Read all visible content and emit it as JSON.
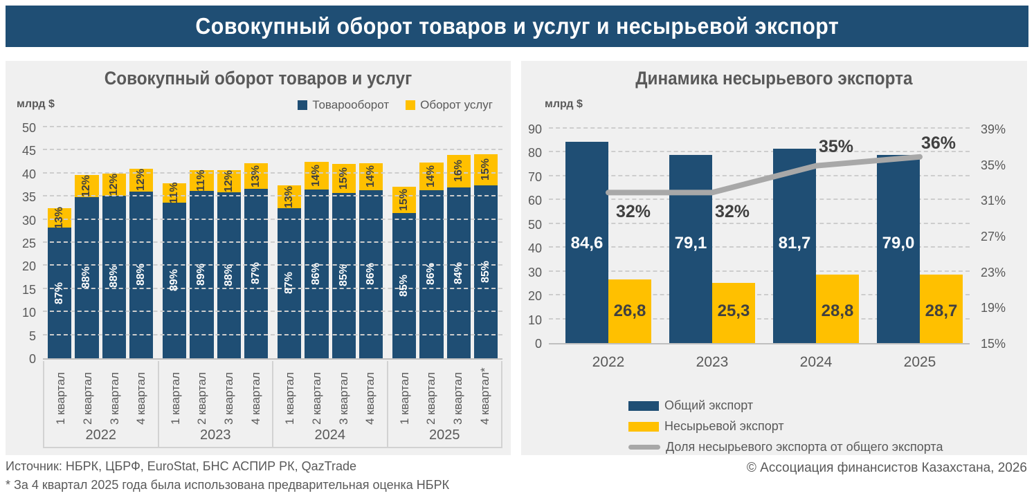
{
  "header": {
    "title": "Совокупный оборот товаров и услуг и несырьевой экспорт"
  },
  "colors": {
    "blue": "#1F4E74",
    "yellow": "#FFC000",
    "grey_line": "#A8A8A8",
    "panel_bg": "#F0F0F0",
    "text_grey": "#595959"
  },
  "left_chart": {
    "title": "Совокупный оборот товаров и услуг",
    "unit_label": "млрд $",
    "legend": [
      {
        "label": "Товарооборот",
        "color": "#1F4E74"
      },
      {
        "label": "Оборот услуг",
        "color": "#FFC000"
      }
    ]
  },
  "right_chart": {
    "title": "Динамика несырьевого экспорта",
    "unit_label": "млрд $",
    "legend": [
      {
        "label": "Общий экспорт",
        "type": "box",
        "color": "#1F4E74"
      },
      {
        "label": "Несырьевой экспорт",
        "type": "box",
        "color": "#FFC000"
      },
      {
        "label": "Доля несырьевого экспорта от общего экспорта",
        "type": "line",
        "color": "#A8A8A8"
      }
    ]
  },
  "footer": {
    "source": "Источник: НБРК, ЦБРФ, EuroStat, БНС АСПИР РК, QazTrade",
    "note": "* За 4 квартал 2025 года была использована предварительная оценка НБРК",
    "copyright": "© Ассоциация финансистов Казахстана, 2026"
  },
  "chart_data": [
    {
      "type": "bar",
      "stacked": true,
      "title": "Совокупный оборот товаров и услуг",
      "ylabel": "млрд $",
      "ylim": [
        0,
        50
      ],
      "ytick_step": 5,
      "grid": true,
      "legend_position": "top-right",
      "group_years": [
        "2022",
        "2023",
        "2024",
        "2025"
      ],
      "categories": [
        "1 квартал",
        "2 квартал",
        "3 квартал",
        "4 квартал",
        "1 квартал",
        "2 квартал",
        "3 квартал",
        "4 квартал",
        "1 квартал",
        "2 квартал",
        "3 квартал",
        "4 квартал",
        "1 квартал",
        "2 квартал",
        "3 квартал",
        "4 квартал*"
      ],
      "totals": [
        32.7,
        39.9,
        40.2,
        41.3,
        38.1,
        40.9,
        41.0,
        42.4,
        37.6,
        42.7,
        42.3,
        42.5,
        37.3,
        42.6,
        44.3,
        44.4
      ],
      "series": [
        {
          "name": "Товарооборот",
          "values": [
            28.4,
            35.1,
            35.4,
            36.3,
            33.9,
            36.4,
            36.1,
            36.9,
            32.7,
            36.7,
            36.0,
            36.6,
            31.7,
            36.6,
            37.2,
            37.7
          ],
          "labels": [
            "87%",
            "88%",
            "88%",
            "88%",
            "89%",
            "89%",
            "88%",
            "87%",
            "87%",
            "86%",
            "85%",
            "86%",
            "85%",
            "86%",
            "84%",
            "85%"
          ]
        },
        {
          "name": "Оборот услуг",
          "values": [
            4.3,
            4.8,
            4.8,
            5.0,
            4.2,
            4.5,
            4.9,
            5.5,
            4.9,
            6.0,
            6.3,
            5.9,
            5.6,
            6.0,
            7.1,
            6.7
          ],
          "labels": [
            "13%",
            "12%",
            "12%",
            "12%",
            "11%",
            "11%",
            "12%",
            "13%",
            "13%",
            "14%",
            "15%",
            "14%",
            "15%",
            "14%",
            "16%",
            "15%"
          ]
        }
      ]
    },
    {
      "type": "bar+line",
      "title": "Динамика несырьевого экспорта",
      "ylabel": "млрд $",
      "ylim_left": [
        0,
        90
      ],
      "ytick_step_left": 10,
      "ylim_right": [
        15,
        39
      ],
      "right_axis_ticks": [
        "39%",
        "35%",
        "31%",
        "27%",
        "23%",
        "19%",
        "15%"
      ],
      "grid": true,
      "legend_position": "bottom-left",
      "categories": [
        "2022",
        "2023",
        "2024",
        "2025"
      ],
      "series": [
        {
          "name": "Общий экспорт",
          "type": "bar",
          "values": [
            84.6,
            79.1,
            81.7,
            79.0
          ],
          "labels": [
            "84,6",
            "79,1",
            "81,7",
            "79,0"
          ]
        },
        {
          "name": "Несырьевой экспорт",
          "type": "bar",
          "values": [
            26.8,
            25.3,
            28.8,
            28.7
          ],
          "labels": [
            "26,8",
            "25,3",
            "28,8",
            "28,7"
          ]
        },
        {
          "name": "Доля несырьевого экспорта от общего экспорта",
          "type": "line",
          "axis": "right",
          "values": [
            32,
            32,
            35,
            36
          ],
          "labels": [
            "32%",
            "32%",
            "35%",
            "36%"
          ],
          "label_placement": [
            "below",
            "below",
            "above",
            "above"
          ]
        }
      ]
    }
  ]
}
